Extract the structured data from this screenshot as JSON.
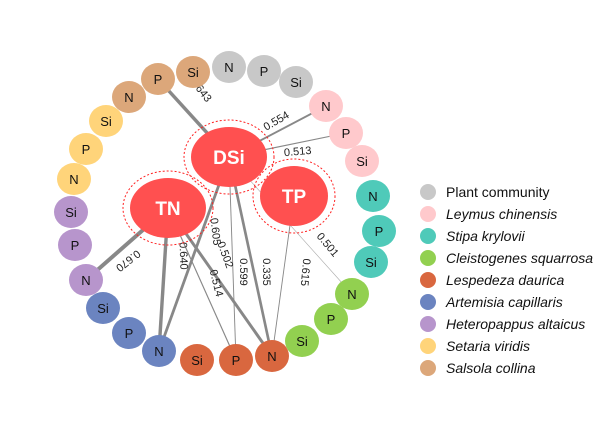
{
  "hubs": [
    {
      "id": "DSi",
      "label": "DSi"
    },
    {
      "id": "TN",
      "label": "TN"
    },
    {
      "id": "TP",
      "label": "TP"
    }
  ],
  "hub_color": "#ff5050",
  "groups": [
    {
      "name": "Plant community",
      "italic": false,
      "color": "#c8c8c8",
      "nodes": [
        "N",
        "P",
        "Si"
      ]
    },
    {
      "name": "Leymus chinensis",
      "italic": true,
      "color": "#ffc9cc",
      "nodes": [
        "N",
        "P",
        "Si"
      ]
    },
    {
      "name": "Stipa krylovii",
      "italic": true,
      "color": "#4fcab9",
      "nodes": [
        "N",
        "P",
        "Si"
      ]
    },
    {
      "name": "Cleistogenes squarrosa",
      "italic": true,
      "color": "#92d050",
      "nodes": [
        "N",
        "P",
        "Si"
      ]
    },
    {
      "name": "Lespedeza daurica",
      "italic": true,
      "color": "#d9673f",
      "nodes": [
        "N",
        "P",
        "Si"
      ]
    },
    {
      "name": "Artemisia capillaris",
      "italic": true,
      "color": "#6b84c0",
      "nodes": [
        "N",
        "P",
        "Si"
      ]
    },
    {
      "name": "Heteropappus altaicus",
      "italic": true,
      "color": "#b795cc",
      "nodes": [
        "N",
        "P",
        "Si"
      ]
    },
    {
      "name": "Setaria viridis",
      "italic": true,
      "color": "#ffd47a",
      "nodes": [
        "N",
        "P",
        "Si"
      ]
    },
    {
      "name": "Salsola collina",
      "italic": true,
      "color": "#dca77a",
      "nodes": [
        "N",
        "P",
        "Si"
      ]
    }
  ],
  "edges": [
    {
      "from": "DSi",
      "to": "Salsola collina:P",
      "value": "0.643"
    },
    {
      "from": "DSi",
      "to": "Leymus chinensis:N",
      "value": "0.554"
    },
    {
      "from": "DSi",
      "to": "Leymus chinensis:P",
      "value": "0.513"
    },
    {
      "from": "DSi",
      "to": "Artemisia capillaris:N",
      "value": "0.605"
    },
    {
      "from": "DSi",
      "to": "Lespedeza daurica:P",
      "value": "0.502"
    },
    {
      "from": "DSi",
      "to": "Lespedeza daurica:N",
      "value": "0.599"
    },
    {
      "from": "DSi",
      "to": "Cleistogenes squarrosa:N",
      "value": "0.335"
    },
    {
      "from": "TN",
      "to": "Heteropappus altaicus:N",
      "value": "0.670"
    },
    {
      "from": "TN",
      "to": "Artemisia capillaris:N",
      "value": "0.640"
    },
    {
      "from": "TN",
      "to": "Lespedeza daurica:P",
      "value": "0.514"
    },
    {
      "from": "TN",
      "to": "Lespedeza daurica:N",
      "value": "0.615"
    },
    {
      "from": "TP",
      "to": "Lespedeza daurica:N",
      "value": "0.501"
    }
  ]
}
